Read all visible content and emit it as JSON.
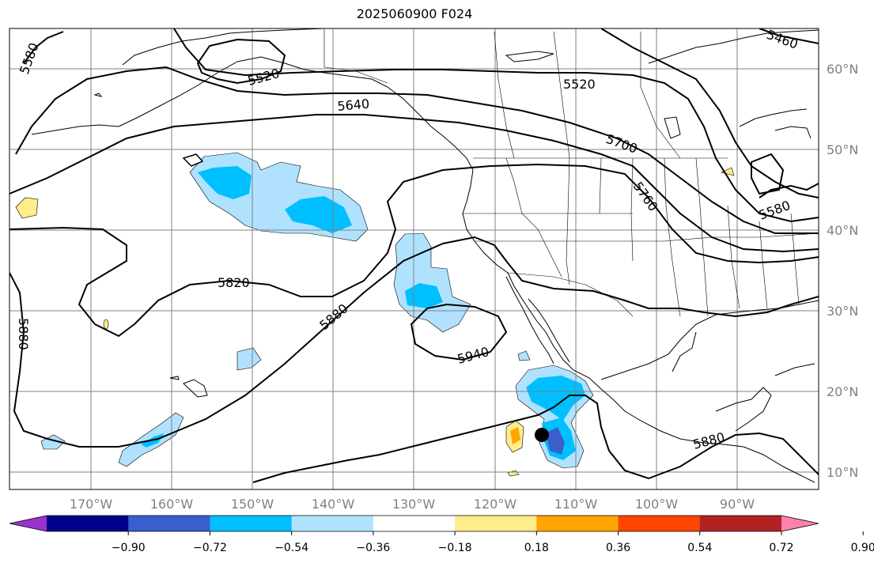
{
  "title": "2025060900 F024",
  "map": {
    "lat_labels": [
      "60°N",
      "50°N",
      "40°N",
      "30°N",
      "20°N",
      "10°N"
    ],
    "lon_labels": [
      "170°W",
      "160°W",
      "150°W",
      "140°W",
      "130°W",
      "120°W",
      "110°W",
      "100°W",
      "90°W"
    ],
    "contour_labels": [
      "5580",
      "5520",
      "5640",
      "5520",
      "5460",
      "5700",
      "5760",
      "5580",
      "5820",
      "5880",
      "5880",
      "5940",
      "5880"
    ],
    "storm_marker": "black-circle"
  },
  "colorbar": {
    "colors": [
      "#9932cc",
      "#00008b",
      "#3a5fcd",
      "#00bfff",
      "#b0e2ff",
      "#ffffff",
      "#ffec8b",
      "#ffa500",
      "#ff4500",
      "#b22222",
      "#ff82ab"
    ],
    "tick_labels": [
      "−0.90",
      "−0.72",
      "−0.54",
      "−0.36",
      "−0.18",
      "0.18",
      "0.36",
      "0.54",
      "0.72",
      "0.90"
    ]
  }
}
